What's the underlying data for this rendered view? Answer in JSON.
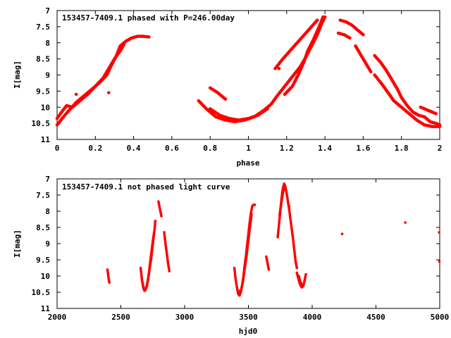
{
  "chart_data": [
    {
      "type": "scatter",
      "title": "153457-7409.1 phased with P=246.00day",
      "xlabel": "phase",
      "ylabel": "I[mag]",
      "xlim": [
        0,
        2
      ],
      "ylim": [
        11,
        7
      ],
      "y_inverted": true,
      "grid": false,
      "xticks": [
        "0",
        "0.2",
        "0.4",
        "0.6",
        "0.8",
        "1",
        "1.2",
        "1.4",
        "1.6",
        "1.8",
        "2"
      ],
      "yticks": [
        "7",
        "7.5",
        "8",
        "8.5",
        "9",
        "9.5",
        "10",
        "10.5",
        "11"
      ],
      "marker_color": "#ff0000",
      "segments": [
        [
          [
            0.0,
            10.55
          ],
          [
            0.02,
            10.4
          ],
          [
            0.04,
            10.25
          ],
          [
            0.07,
            10.05
          ],
          [
            0.1,
            9.85
          ],
          [
            0.14,
            9.65
          ],
          [
            0.18,
            9.45
          ],
          [
            0.22,
            9.25
          ],
          [
            0.26,
            9.0
          ],
          [
            0.28,
            8.75
          ],
          [
            0.31,
            8.4
          ],
          [
            0.33,
            8.1
          ],
          [
            0.36,
            7.95
          ],
          [
            0.39,
            7.85
          ],
          [
            0.42,
            7.8
          ],
          [
            0.45,
            7.8
          ],
          [
            0.48,
            7.82
          ]
        ],
        [
          [
            0.0,
            10.35
          ],
          [
            0.03,
            10.1
          ],
          [
            0.05,
            9.95
          ],
          [
            0.08,
            10.0
          ],
          [
            0.12,
            9.8
          ],
          [
            0.16,
            9.6
          ],
          [
            0.2,
            9.35
          ],
          [
            0.24,
            9.1
          ],
          [
            0.27,
            8.8
          ],
          [
            0.3,
            8.5
          ],
          [
            0.33,
            8.25
          ],
          [
            0.35,
            8.05
          ]
        ],
        [
          [
            0.8,
            9.4
          ],
          [
            0.84,
            9.55
          ],
          [
            0.88,
            9.75
          ]
        ],
        [
          [
            0.8,
            10.05
          ],
          [
            0.85,
            10.25
          ],
          [
            0.9,
            10.35
          ],
          [
            0.95,
            10.4
          ],
          [
            1.0,
            10.35
          ],
          [
            1.05,
            10.25
          ],
          [
            1.1,
            10.05
          ]
        ],
        [
          [
            0.74,
            9.8
          ],
          [
            0.78,
            10.05
          ],
          [
            0.83,
            10.3
          ],
          [
            0.88,
            10.4
          ],
          [
            0.93,
            10.45
          ],
          [
            0.98,
            10.4
          ],
          [
            1.03,
            10.3
          ],
          [
            1.08,
            10.1
          ],
          [
            1.12,
            9.9
          ],
          [
            1.15,
            9.65
          ],
          [
            1.19,
            9.35
          ],
          [
            1.23,
            9.05
          ],
          [
            1.27,
            8.75
          ],
          [
            1.3,
            8.45
          ],
          [
            1.33,
            8.1
          ],
          [
            1.36,
            7.75
          ],
          [
            1.38,
            7.45
          ],
          [
            1.4,
            7.2
          ]
        ],
        [
          [
            1.19,
            9.6
          ],
          [
            1.23,
            9.35
          ],
          [
            1.26,
            9.0
          ],
          [
            1.29,
            8.6
          ],
          [
            1.31,
            8.25
          ],
          [
            1.34,
            7.9
          ],
          [
            1.37,
            7.5
          ],
          [
            1.39,
            7.2
          ]
        ],
        [
          [
            1.14,
            8.8
          ],
          [
            1.18,
            8.5
          ],
          [
            1.21,
            8.3
          ],
          [
            1.24,
            8.1
          ],
          [
            1.27,
            7.9
          ],
          [
            1.3,
            7.7
          ],
          [
            1.33,
            7.5
          ],
          [
            1.36,
            7.3
          ]
        ],
        [
          [
            1.48,
            7.3
          ],
          [
            1.51,
            7.35
          ],
          [
            1.54,
            7.45
          ],
          [
            1.57,
            7.6
          ],
          [
            1.6,
            7.75
          ]
        ],
        [
          [
            1.47,
            7.7
          ],
          [
            1.5,
            7.75
          ],
          [
            1.53,
            7.85
          ]
        ],
        [
          [
            1.56,
            8.1
          ],
          [
            1.58,
            8.3
          ],
          [
            1.6,
            8.5
          ],
          [
            1.62,
            8.7
          ],
          [
            1.64,
            8.9
          ]
        ],
        [
          [
            1.66,
            8.4
          ],
          [
            1.69,
            8.6
          ],
          [
            1.72,
            8.85
          ],
          [
            1.75,
            9.15
          ],
          [
            1.78,
            9.45
          ],
          [
            1.8,
            9.7
          ],
          [
            1.83,
            9.95
          ],
          [
            1.86,
            10.15
          ],
          [
            1.89,
            10.25
          ],
          [
            1.92,
            10.3
          ],
          [
            1.95,
            10.45
          ],
          [
            1.98,
            10.5
          ],
          [
            2.0,
            10.55
          ]
        ],
        [
          [
            1.66,
            9.0
          ],
          [
            1.7,
            9.3
          ],
          [
            1.73,
            9.55
          ],
          [
            1.76,
            9.8
          ],
          [
            1.8,
            10.0
          ],
          [
            1.84,
            10.2
          ],
          [
            1.88,
            10.4
          ],
          [
            1.92,
            10.55
          ],
          [
            1.96,
            10.6
          ],
          [
            2.0,
            10.6
          ]
        ],
        [
          [
            1.9,
            10.0
          ],
          [
            1.94,
            10.1
          ],
          [
            1.98,
            10.2
          ]
        ]
      ],
      "points": [
        [
          0.27,
          9.55
        ],
        [
          0.1,
          9.6
        ],
        [
          1.16,
          8.8
        ]
      ]
    },
    {
      "type": "scatter",
      "title": "153457-7409.1 not phased light curve",
      "xlabel": "hjd0",
      "ylabel": "I[mag]",
      "xlim": [
        2000,
        5000
      ],
      "ylim": [
        11,
        7
      ],
      "y_inverted": true,
      "grid": false,
      "xticks": [
        "2000",
        "2500",
        "3000",
        "3500",
        "4000",
        "4500",
        "5000"
      ],
      "yticks": [
        "7",
        "7.5",
        "8",
        "8.5",
        "9",
        "9.5",
        "10",
        "10.5",
        "11"
      ],
      "marker_color": "#ff0000",
      "segments": [
        [
          [
            2395,
            9.8
          ],
          [
            2400,
            9.95
          ],
          [
            2405,
            10.1
          ],
          [
            2410,
            10.2
          ]
        ],
        [
          [
            2655,
            9.75
          ],
          [
            2665,
            10.1
          ],
          [
            2675,
            10.35
          ],
          [
            2685,
            10.45
          ],
          [
            2695,
            10.4
          ],
          [
            2705,
            10.3
          ],
          [
            2715,
            10.05
          ],
          [
            2725,
            9.75
          ],
          [
            2735,
            9.4
          ],
          [
            2745,
            9.1
          ],
          [
            2755,
            8.8
          ],
          [
            2765,
            8.55
          ],
          [
            2770,
            8.3
          ]
        ],
        [
          [
            2670,
            10.2
          ],
          [
            2680,
            10.4
          ],
          [
            2690,
            10.45
          ],
          [
            2700,
            10.35
          ],
          [
            2712,
            10.15
          ],
          [
            2725,
            9.8
          ],
          [
            2738,
            9.45
          ],
          [
            2750,
            9.05
          ],
          [
            2760,
            8.7
          ]
        ],
        [
          [
            2795,
            7.7
          ],
          [
            2802,
            7.85
          ],
          [
            2810,
            8.0
          ],
          [
            2818,
            8.15
          ]
        ],
        [
          [
            2840,
            8.65
          ],
          [
            2850,
            9.0
          ],
          [
            2860,
            9.3
          ],
          [
            2870,
            9.6
          ],
          [
            2880,
            9.85
          ]
        ],
        [
          [
            3390,
            9.75
          ],
          [
            3400,
            10.1
          ],
          [
            3410,
            10.35
          ],
          [
            3420,
            10.55
          ],
          [
            3430,
            10.6
          ],
          [
            3440,
            10.5
          ],
          [
            3450,
            10.3
          ],
          [
            3460,
            10.05
          ],
          [
            3470,
            9.7
          ],
          [
            3480,
            9.4
          ],
          [
            3490,
            9.05
          ],
          [
            3500,
            8.7
          ],
          [
            3510,
            8.35
          ],
          [
            3520,
            8.05
          ],
          [
            3530,
            7.85
          ],
          [
            3540,
            7.8
          ],
          [
            3550,
            7.8
          ]
        ],
        [
          [
            3420,
            10.45
          ],
          [
            3432,
            10.55
          ],
          [
            3445,
            10.4
          ],
          [
            3458,
            10.15
          ],
          [
            3470,
            9.8
          ],
          [
            3485,
            9.4
          ],
          [
            3500,
            8.9
          ],
          [
            3515,
            8.4
          ],
          [
            3525,
            8.1
          ]
        ],
        [
          [
            3640,
            9.4
          ],
          [
            3650,
            9.6
          ],
          [
            3660,
            9.8
          ]
        ],
        [
          [
            3730,
            8.8
          ],
          [
            3740,
            8.4
          ],
          [
            3750,
            8.0
          ],
          [
            3760,
            7.6
          ],
          [
            3770,
            7.3
          ],
          [
            3780,
            7.15
          ],
          [
            3790,
            7.25
          ],
          [
            3800,
            7.45
          ],
          [
            3810,
            7.7
          ],
          [
            3820,
            7.95
          ],
          [
            3830,
            8.25
          ],
          [
            3840,
            8.55
          ],
          [
            3850,
            8.85
          ],
          [
            3860,
            9.2
          ],
          [
            3870,
            9.55
          ],
          [
            3880,
            9.75
          ]
        ],
        [
          [
            3745,
            8.1
          ],
          [
            3760,
            7.7
          ],
          [
            3775,
            7.35
          ],
          [
            3785,
            7.2
          ]
        ],
        [
          [
            3880,
            9.9
          ],
          [
            3890,
            10.05
          ],
          [
            3900,
            10.2
          ],
          [
            3910,
            10.3
          ],
          [
            3920,
            10.35
          ],
          [
            3930,
            10.3
          ],
          [
            3940,
            10.15
          ],
          [
            3950,
            9.95
          ]
        ],
        [
          [
            3895,
            10.0
          ],
          [
            3905,
            10.15
          ],
          [
            3915,
            10.25
          ],
          [
            3925,
            10.3
          ]
        ]
      ],
      "points": [
        [
          4235,
          8.7
        ],
        [
          4730,
          8.35
        ],
        [
          4995,
          8.65
        ],
        [
          4997,
          9.55
        ],
        [
          3820,
          7.85
        ]
      ]
    }
  ]
}
